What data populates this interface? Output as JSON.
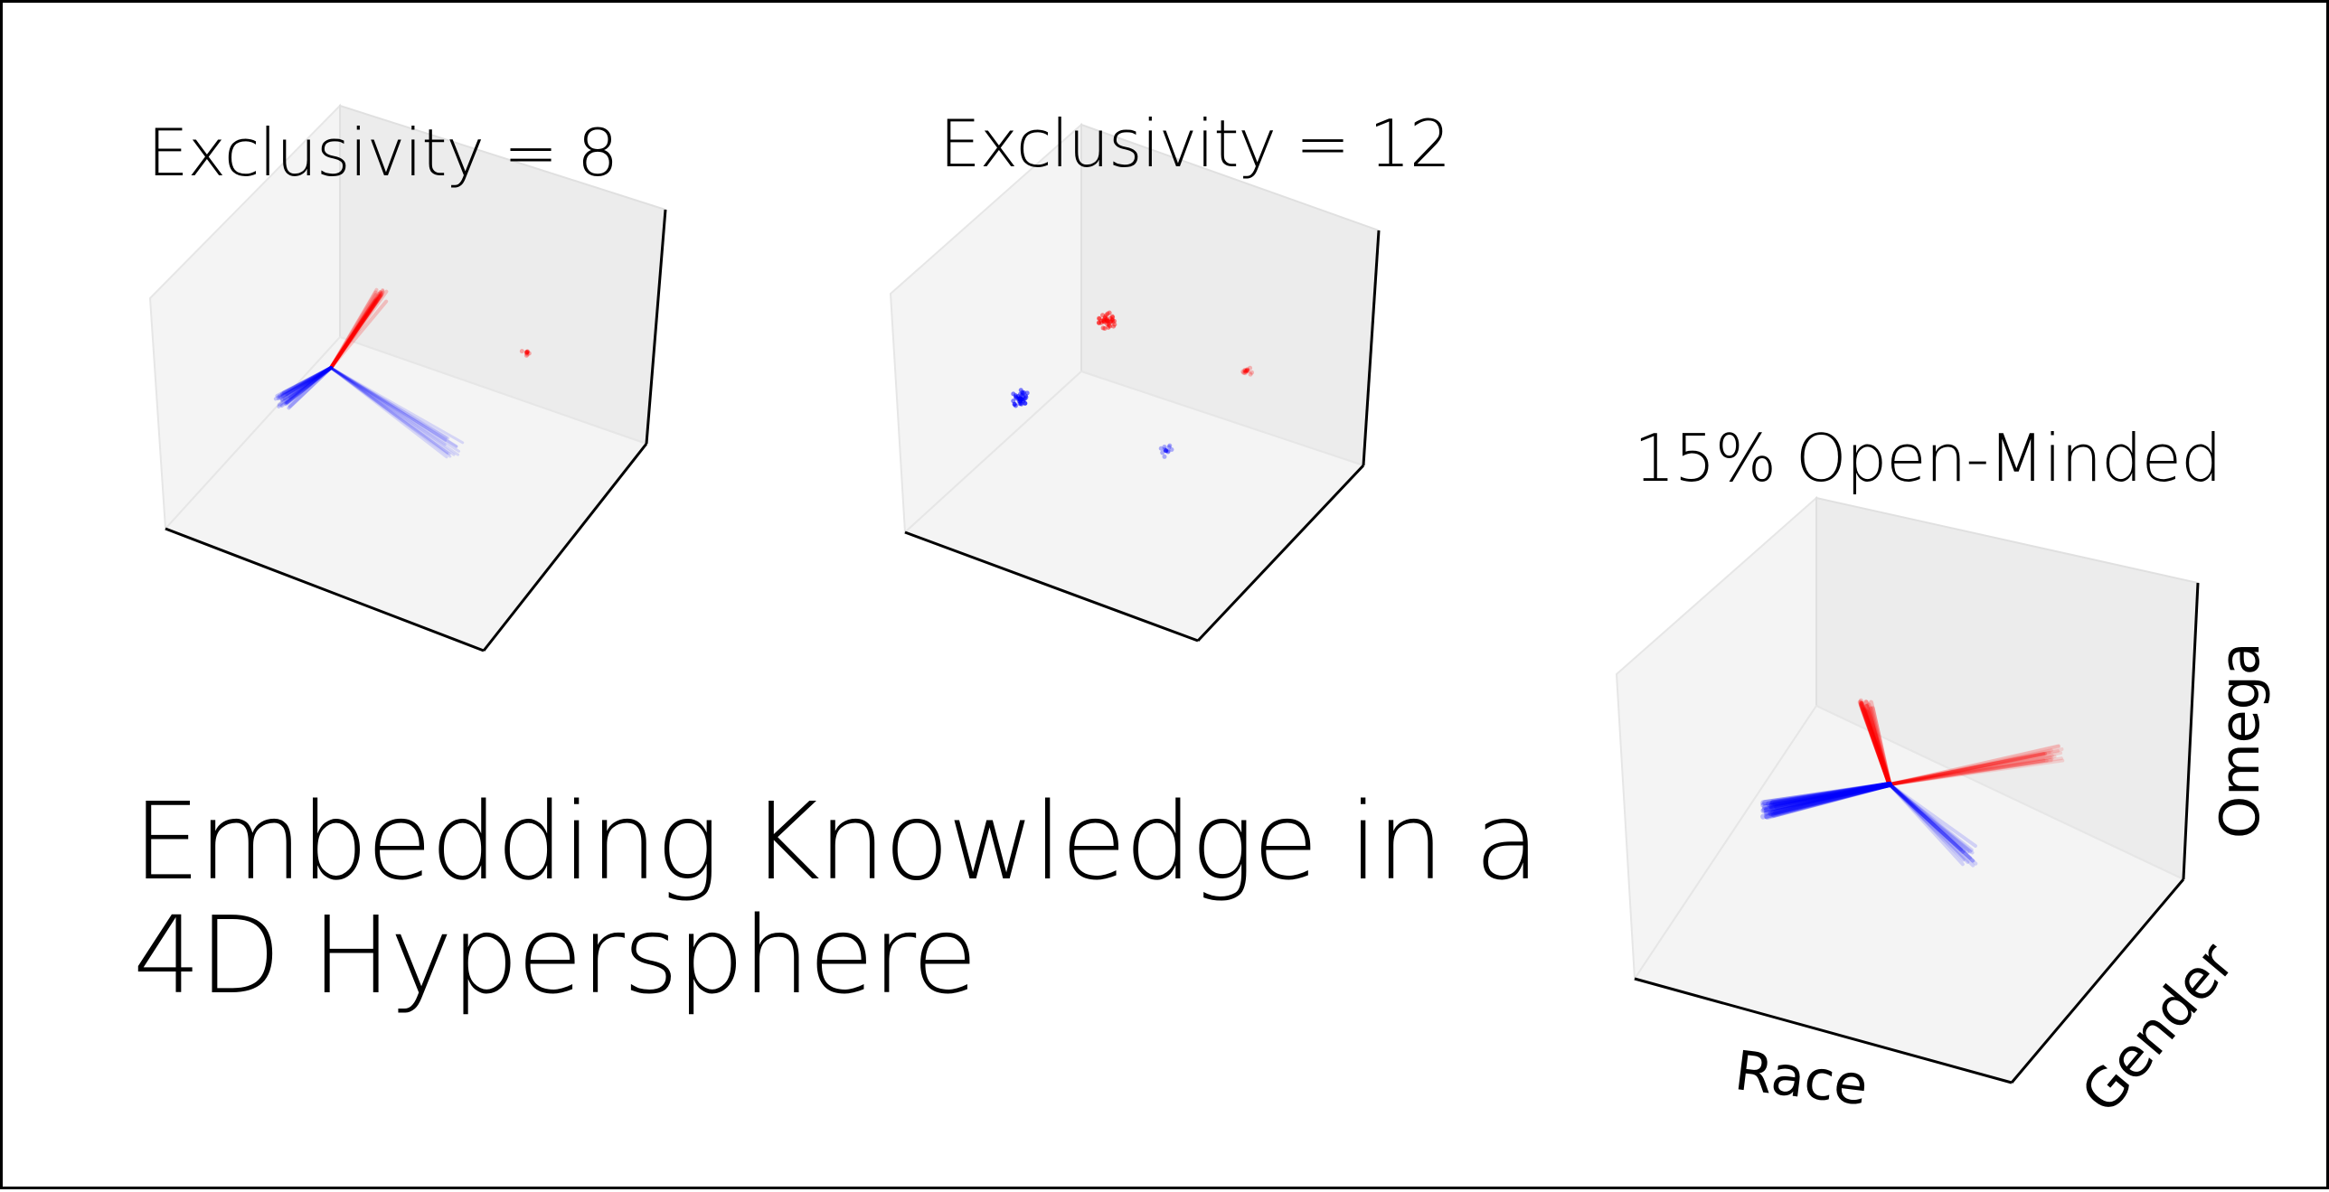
{
  "slide": {
    "main_title_line1": "Embedding Knowledge in a",
    "main_title_line2": "4D Hypersphere"
  },
  "panels": [
    {
      "title": "Exclusivity = 8"
    },
    {
      "title": "Exclusivity = 12"
    },
    {
      "title": "15% Open-Minded"
    }
  ],
  "axes": {
    "x_label": "Race",
    "y_label": "Gender",
    "z_label": "Omega"
  },
  "colors": {
    "red": "#ff0000",
    "blue": "#0000ff",
    "pane_light": "#f4f4f4",
    "pane_dark": "#ececec",
    "axis_line": "#000000"
  }
}
